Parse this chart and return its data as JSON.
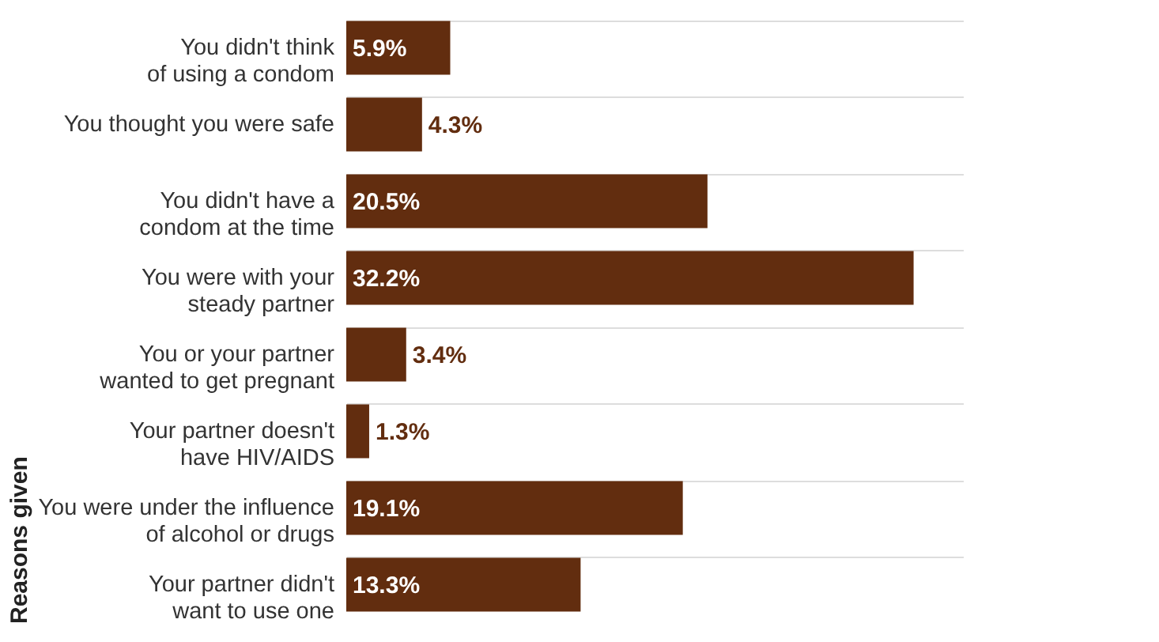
{
  "chart_data": {
    "type": "bar",
    "orientation": "horizontal",
    "ylabel": "Reasons given",
    "categories": [
      "You didn't think of using a condom",
      "You thought you were safe",
      "You didn't have a condom at the time",
      "You were with your steady partner",
      "You or your partner wanted to get pregnant",
      "Your partner doesn't have HIV/AIDS",
      "You were under the influence of alcohol or drugs",
      "Your partner didn't want to use one"
    ],
    "values": [
      5.9,
      4.3,
      20.5,
      32.2,
      3.4,
      1.3,
      19.1,
      13.3
    ],
    "value_labels": [
      "5.9%",
      "4.3%",
      "20.5%",
      "32.2%",
      "3.4%",
      "1.3%",
      "19.1%",
      "13.3%"
    ],
    "color": "#622d0f",
    "grid": "y"
  }
}
